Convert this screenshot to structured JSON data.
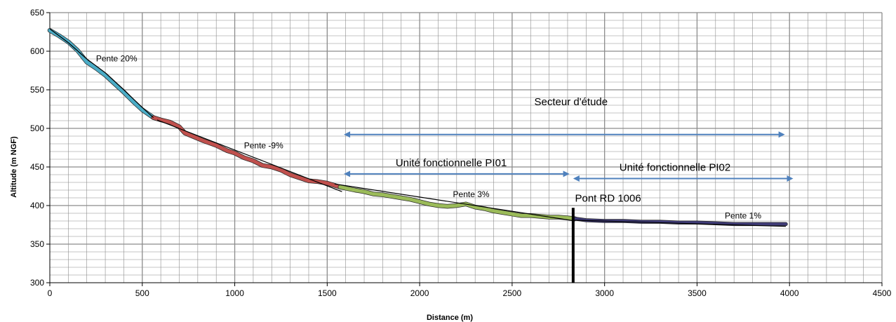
{
  "chart_data": {
    "type": "line",
    "title": "",
    "xlabel": "Distance (m)",
    "ylabel": "Altitude (m NGF)",
    "xlim": [
      0,
      4500
    ],
    "ylim": [
      300,
      650
    ],
    "x_ticks": [
      0,
      500,
      1000,
      1500,
      2000,
      2500,
      3000,
      3500,
      4000,
      4500
    ],
    "y_ticks": [
      300,
      350,
      400,
      450,
      500,
      550,
      600,
      650
    ],
    "grid": "major and minor",
    "legend": "none",
    "series": [
      {
        "color": "#4bacc6",
        "width": 5,
        "points": [
          [
            0,
            627
          ],
          [
            50,
            620
          ],
          [
            100,
            612
          ],
          [
            150,
            601
          ],
          [
            200,
            586
          ],
          [
            250,
            578
          ],
          [
            300,
            569
          ],
          [
            350,
            558
          ],
          [
            400,
            547
          ],
          [
            450,
            535
          ],
          [
            500,
            524
          ],
          [
            560,
            514
          ]
        ]
      },
      {
        "color": "#c0504d",
        "width": 5,
        "points": [
          [
            560,
            514
          ],
          [
            600,
            511
          ],
          [
            650,
            508
          ],
          [
            700,
            502
          ],
          [
            730,
            494
          ],
          [
            780,
            489
          ],
          [
            830,
            484
          ],
          [
            900,
            478
          ],
          [
            960,
            471
          ],
          [
            1000,
            468
          ],
          [
            1050,
            462
          ],
          [
            1100,
            458
          ],
          [
            1150,
            452
          ],
          [
            1200,
            450
          ],
          [
            1250,
            446
          ],
          [
            1300,
            440
          ],
          [
            1350,
            436
          ],
          [
            1400,
            432
          ],
          [
            1450,
            431
          ],
          [
            1500,
            429
          ],
          [
            1570,
            424
          ]
        ]
      },
      {
        "color": "#9bbb59",
        "width": 5,
        "points": [
          [
            1570,
            424
          ],
          [
            1650,
            420
          ],
          [
            1700,
            418
          ],
          [
            1750,
            415
          ],
          [
            1800,
            414
          ],
          [
            1850,
            412
          ],
          [
            1900,
            410
          ],
          [
            1950,
            408
          ],
          [
            2000,
            405
          ],
          [
            2050,
            402
          ],
          [
            2100,
            400
          ],
          [
            2150,
            399
          ],
          [
            2200,
            400
          ],
          [
            2250,
            402
          ],
          [
            2300,
            398
          ],
          [
            2350,
            396
          ],
          [
            2400,
            393
          ],
          [
            2450,
            391
          ],
          [
            2500,
            389
          ],
          [
            2550,
            387
          ],
          [
            2600,
            387
          ],
          [
            2650,
            386
          ],
          [
            2700,
            385
          ],
          [
            2750,
            385
          ],
          [
            2800,
            384
          ],
          [
            2840,
            383
          ]
        ]
      },
      {
        "color": "#403c78",
        "width": 4,
        "points": [
          [
            2840,
            383
          ],
          [
            2900,
            381
          ],
          [
            3000,
            380
          ],
          [
            3100,
            380
          ],
          [
            3200,
            379
          ],
          [
            3300,
            379
          ],
          [
            3400,
            378
          ],
          [
            3500,
            378
          ],
          [
            3600,
            377
          ],
          [
            3700,
            376
          ],
          [
            3800,
            376
          ],
          [
            3900,
            376
          ],
          [
            3980,
            376
          ]
        ]
      }
    ],
    "trend_lines": [
      {
        "color": "#000000",
        "points": [
          [
            0,
            629
          ],
          [
            100,
            611
          ],
          [
            200,
            590
          ],
          [
            300,
            572
          ],
          [
            400,
            550
          ],
          [
            500,
            527
          ],
          [
            560,
            514
          ]
        ]
      },
      {
        "color": "#000000",
        "points": [
          [
            580,
            511
          ],
          [
            1580,
            418
          ]
        ]
      },
      {
        "color": "#000000",
        "points": [
          [
            1540,
            428
          ],
          [
            2840,
            380
          ]
        ]
      },
      {
        "color": "#000000",
        "points": [
          [
            2840,
            381
          ],
          [
            3980,
            373
          ]
        ]
      }
    ],
    "range_arrows": [
      {
        "label": "Secteur d'étude",
        "x_start": 1590,
        "x_end": 3975,
        "y": 492
      },
      {
        "label": "Unité fonctionnelle PI01",
        "x_start": 1590,
        "x_end": 2810,
        "y": 441
      },
      {
        "label": "Unité fonctionnelle PI02",
        "x_start": 2830,
        "x_end": 4020,
        "y": 435
      }
    ],
    "vertical_marker": {
      "label": "Pont RD 1006",
      "x": 2830,
      "y_from": 300,
      "y_to": 397
    },
    "annotations": [
      {
        "text": "Pente 20%",
        "x": 250,
        "y": 587,
        "style": "small"
      },
      {
        "text": "Pente -9%",
        "x": 1050,
        "y": 474,
        "style": "small"
      },
      {
        "text": "Pente 3%",
        "x": 2180,
        "y": 411,
        "style": "small"
      },
      {
        "text": "Pente 1%",
        "x": 3650,
        "y": 383,
        "style": "small"
      },
      {
        "text": "Secteur d'étude",
        "x": 2620,
        "y": 530,
        "style": "large"
      },
      {
        "text": "Unité fonctionnelle PI01",
        "x": 1870,
        "y": 451,
        "style": "large"
      },
      {
        "text": "Unité fonctionnelle PI02",
        "x": 3080,
        "y": 445,
        "style": "large"
      },
      {
        "text": "Pont RD 1006",
        "x": 2840,
        "y": 405,
        "style": "large"
      }
    ],
    "colors": {
      "grid": "#8c8c8c",
      "arrow": "#4f81bd",
      "axis": "#808080"
    }
  }
}
